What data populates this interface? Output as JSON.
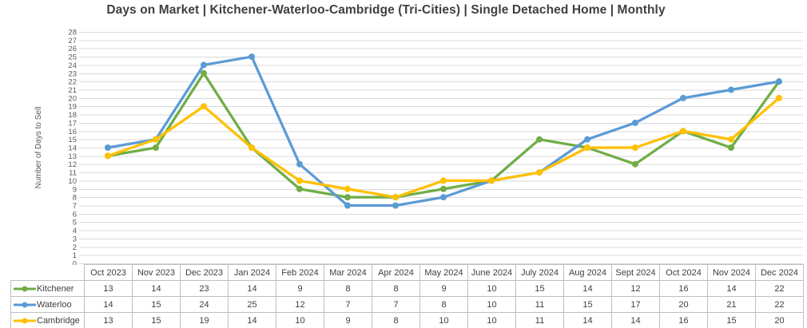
{
  "chart_data": {
    "type": "line",
    "title": "Days on Market | Kitchener-Waterloo-Cambridge (Tri-Cities) | Single Detached Home | Monthly",
    "xlabel": "",
    "ylabel": "Number of Days to Sell",
    "ylim": [
      0,
      28
    ],
    "ytick_step": 1,
    "grid": "horizontal",
    "legend_position": "data-table-left-column",
    "marker": "circle",
    "categories": [
      "Oct 2023",
      "Nov 2023",
      "Dec 2023",
      "Jan 2024",
      "Feb 2024",
      "Mar 2024",
      "Apr 2024",
      "May 2024",
      "June 2024",
      "July 2024",
      "Aug 2024",
      "Sept 2024",
      "Oct 2024",
      "Nov 2024",
      "Dec 2024"
    ],
    "series": [
      {
        "name": "Kitchener",
        "color": "#70AD47",
        "values": [
          13,
          14,
          23,
          14,
          9,
          8,
          8,
          9,
          10,
          15,
          14,
          12,
          16,
          14,
          22
        ]
      },
      {
        "name": "Waterloo",
        "color": "#5B9BD5",
        "values": [
          14,
          15,
          24,
          25,
          12,
          7,
          7,
          8,
          10,
          11,
          15,
          17,
          20,
          21,
          22
        ]
      },
      {
        "name": "Cambridge",
        "color": "#FFC000",
        "values": [
          13,
          15,
          19,
          14,
          10,
          9,
          8,
          10,
          10,
          11,
          14,
          14,
          16,
          15,
          20
        ]
      }
    ]
  },
  "colors": {
    "title_text": "#404040",
    "axis_text": "#595959",
    "gridline": "#D9D9D9",
    "table_border": "#BFBFBF",
    "table_text": "#404040"
  }
}
